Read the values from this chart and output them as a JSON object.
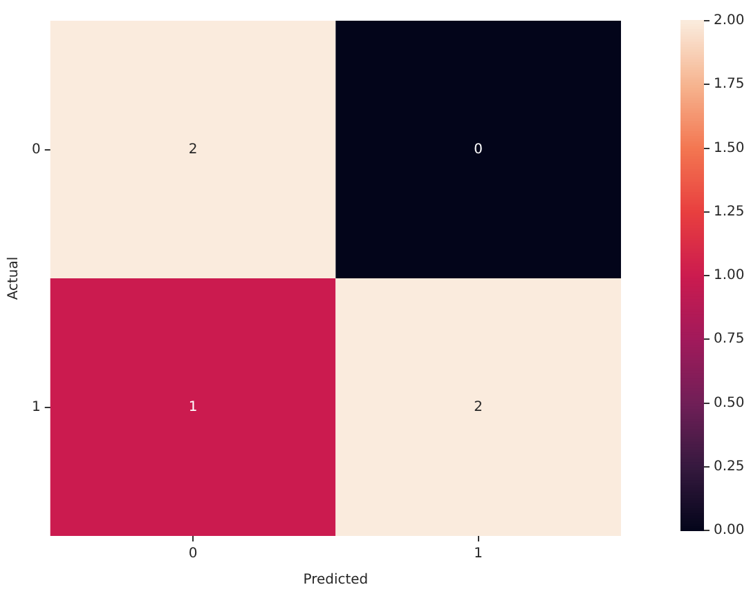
{
  "chart_data": {
    "type": "heatmap",
    "xlabel": "Predicted",
    "ylabel": "Actual",
    "categories": [
      "0",
      "1"
    ],
    "y_categories": [
      "0",
      "1"
    ],
    "cells": [
      [
        2,
        0
      ],
      [
        1,
        2
      ]
    ],
    "data_labels": true,
    "clim": [
      0,
      2
    ],
    "cticks": [
      {
        "value": 0,
        "label": "0.00"
      },
      {
        "value": 0.25,
        "label": "0.25"
      },
      {
        "value": 0.5,
        "label": "0.50"
      },
      {
        "value": 0.75,
        "label": "0.75"
      },
      {
        "value": 1,
        "label": "1.00"
      },
      {
        "value": 1.25,
        "label": "1.25"
      },
      {
        "value": 1.5,
        "label": "1.50"
      },
      {
        "value": 1.75,
        "label": "1.75"
      },
      {
        "value": 2,
        "label": "2.00"
      }
    ]
  }
}
